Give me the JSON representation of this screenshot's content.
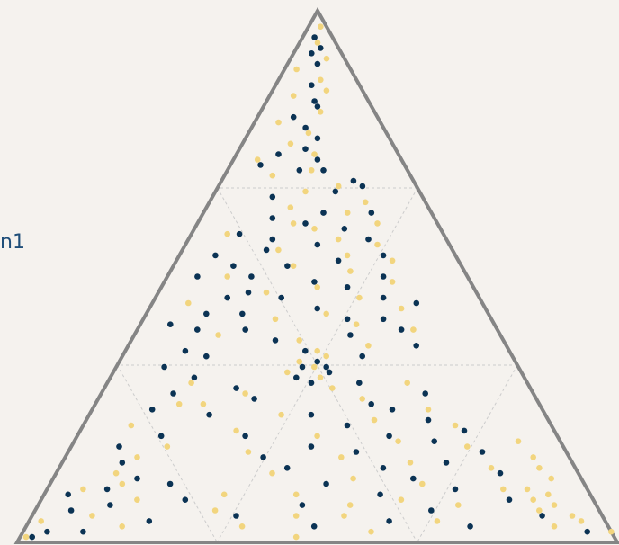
{
  "legend": {
    "partial_label": "n1"
  },
  "chart_data": {
    "type": "scatter",
    "subtype": "ternary",
    "grid": true,
    "colors": {
      "background": "#f5f2ee",
      "frame": "#858585",
      "grid": "#cccccc",
      "series_dark": "#0b3354",
      "series_light": "#f2d57e"
    },
    "series": [
      {
        "color": "#0b3354",
        "points": [
          [
            0.95,
            0.02,
            0.03
          ],
          [
            0.93,
            0.04,
            0.03
          ],
          [
            0.92,
            0.03,
            0.05
          ],
          [
            0.9,
            0.05,
            0.05
          ],
          [
            0.86,
            0.06,
            0.08
          ],
          [
            0.83,
            0.08,
            0.09
          ],
          [
            0.82,
            0.09,
            0.09
          ],
          [
            0.8,
            0.06,
            0.14
          ],
          [
            0.78,
            0.09,
            0.13
          ],
          [
            0.76,
            0.12,
            0.12
          ],
          [
            0.74,
            0.11,
            0.15
          ],
          [
            0.73,
            0.07,
            0.2
          ],
          [
            0.72,
            0.14,
            0.14
          ],
          [
            0.71,
            0.05,
            0.24
          ],
          [
            0.7,
            0.12,
            0.18
          ],
          [
            0.7,
            0.16,
            0.14
          ],
          [
            0.68,
            0.22,
            0.1
          ],
          [
            0.67,
            0.24,
            0.09
          ],
          [
            0.66,
            0.2,
            0.14
          ],
          [
            0.65,
            0.1,
            0.25
          ],
          [
            0.62,
            0.28,
            0.1
          ],
          [
            0.62,
            0.2,
            0.18
          ],
          [
            0.61,
            0.12,
            0.27
          ],
          [
            0.6,
            0.18,
            0.22
          ],
          [
            0.59,
            0.25,
            0.16
          ],
          [
            0.58,
            0.08,
            0.34
          ],
          [
            0.57,
            0.3,
            0.13
          ],
          [
            0.56,
            0.22,
            0.22
          ],
          [
            0.55,
            0.14,
            0.31
          ],
          [
            0.54,
            0.34,
            0.12
          ],
          [
            0.53,
            0.27,
            0.2
          ],
          [
            0.52,
            0.1,
            0.38
          ],
          [
            0.52,
            0.19,
            0.29
          ],
          [
            0.5,
            0.36,
            0.14
          ],
          [
            0.5,
            0.05,
            0.45
          ],
          [
            0.49,
            0.25,
            0.26
          ],
          [
            0.48,
            0.31,
            0.21
          ],
          [
            0.47,
            0.15,
            0.38
          ],
          [
            0.46,
            0.38,
            0.16
          ],
          [
            0.46,
            0.21,
            0.33
          ],
          [
            0.45,
            0.44,
            0.11
          ],
          [
            0.44,
            0.28,
            0.28
          ],
          [
            0.43,
            0.1,
            0.47
          ],
          [
            0.42,
            0.34,
            0.24
          ],
          [
            0.42,
            0.4,
            0.18
          ],
          [
            0.41,
            0.05,
            0.54
          ],
          [
            0.4,
            0.44,
            0.16
          ],
          [
            0.4,
            0.18,
            0.42
          ],
          [
            0.39,
            0.36,
            0.25
          ],
          [
            0.38,
            0.24,
            0.38
          ],
          [
            0.37,
            0.48,
            0.15
          ],
          [
            0.36,
            0.3,
            0.34
          ],
          [
            0.35,
            0.14,
            0.51
          ],
          [
            0.35,
            0.4,
            0.25
          ],
          [
            0.34,
            0.33,
            0.33
          ],
          [
            0.33,
            0.31,
            0.36
          ],
          [
            0.33,
            0.35,
            0.32
          ],
          [
            0.32,
            0.36,
            0.32
          ],
          [
            0.31,
            0.31,
            0.38
          ],
          [
            0.3,
            0.34,
            0.36
          ],
          [
            0.3,
            0.42,
            0.28
          ],
          [
            0.29,
            0.22,
            0.49
          ],
          [
            0.28,
            0.54,
            0.18
          ],
          [
            0.27,
            0.26,
            0.47
          ],
          [
            0.26,
            0.46,
            0.28
          ],
          [
            0.25,
            0.5,
            0.25
          ],
          [
            0.24,
            0.2,
            0.56
          ],
          [
            0.24,
            0.37,
            0.39
          ],
          [
            0.23,
            0.57,
            0.2
          ],
          [
            0.22,
            0.44,
            0.34
          ],
          [
            0.21,
            0.64,
            0.15
          ],
          [
            0.2,
            0.28,
            0.52
          ],
          [
            0.2,
            0.52,
            0.28
          ],
          [
            0.19,
            0.6,
            0.21
          ],
          [
            0.18,
            0.4,
            0.42
          ],
          [
            0.17,
            0.69,
            0.14
          ],
          [
            0.17,
            0.48,
            0.35
          ],
          [
            0.16,
            0.33,
            0.51
          ],
          [
            0.15,
            0.64,
            0.21
          ],
          [
            0.14,
            0.54,
            0.32
          ],
          [
            0.14,
            0.38,
            0.48
          ],
          [
            0.13,
            0.74,
            0.13
          ],
          [
            0.12,
            0.6,
            0.28
          ],
          [
            0.11,
            0.46,
            0.43
          ],
          [
            0.11,
            0.2,
            0.69
          ],
          [
            0.1,
            0.68,
            0.22
          ],
          [
            0.09,
            0.56,
            0.35
          ],
          [
            0.08,
            0.78,
            0.14
          ],
          [
            0.08,
            0.24,
            0.68
          ],
          [
            0.07,
            0.44,
            0.49
          ],
          [
            0.06,
            0.66,
            0.28
          ],
          [
            0.05,
            0.85,
            0.1
          ],
          [
            0.05,
            0.34,
            0.61
          ],
          [
            0.04,
            0.6,
            0.36
          ],
          [
            0.04,
            0.2,
            0.76
          ],
          [
            0.03,
            0.74,
            0.23
          ],
          [
            0.03,
            0.48,
            0.49
          ],
          [
            0.02,
            0.94,
            0.04
          ],
          [
            0.02,
            0.1,
            0.88
          ],
          [
            0.01,
            0.02,
            0.97
          ],
          [
            0.12,
            0.14,
            0.74
          ],
          [
            0.1,
            0.1,
            0.8
          ],
          [
            0.07,
            0.12,
            0.81
          ],
          [
            0.15,
            0.1,
            0.75
          ],
          [
            0.06,
            0.06,
            0.88
          ],
          [
            0.02,
            0.04,
            0.94
          ],
          [
            0.09,
            0.04,
            0.87
          ],
          [
            0.18,
            0.08,
            0.74
          ],
          [
            0.2,
            0.14,
            0.66
          ],
          [
            0.25,
            0.1,
            0.65
          ],
          [
            0.28,
            0.12,
            0.6
          ],
          [
            0.31,
            0.14,
            0.55
          ],
          [
            0.33,
            0.08,
            0.59
          ],
          [
            0.36,
            0.1,
            0.54
          ],
          [
            0.4,
            0.1,
            0.5
          ],
          [
            0.43,
            0.16,
            0.41
          ],
          [
            0.46,
            0.12,
            0.42
          ],
          [
            0.5,
            0.14,
            0.36
          ],
          [
            0.54,
            0.06,
            0.4
          ],
          [
            0.57,
            0.14,
            0.29
          ]
        ]
      },
      {
        "color": "#f2d57e",
        "points": [
          [
            0.94,
            0.03,
            0.03
          ],
          [
            0.91,
            0.06,
            0.03
          ],
          [
            0.89,
            0.02,
            0.09
          ],
          [
            0.87,
            0.07,
            0.06
          ],
          [
            0.85,
            0.09,
            0.06
          ],
          [
            0.84,
            0.04,
            0.12
          ],
          [
            0.81,
            0.1,
            0.09
          ],
          [
            0.79,
            0.04,
            0.17
          ],
          [
            0.77,
            0.1,
            0.13
          ],
          [
            0.75,
            0.08,
            0.17
          ],
          [
            0.73,
            0.13,
            0.14
          ],
          [
            0.72,
            0.04,
            0.24
          ],
          [
            0.7,
            0.14,
            0.16
          ],
          [
            0.69,
            0.08,
            0.23
          ],
          [
            0.67,
            0.2,
            0.13
          ],
          [
            0.66,
            0.15,
            0.19
          ],
          [
            0.64,
            0.26,
            0.1
          ],
          [
            0.63,
            0.14,
            0.23
          ],
          [
            0.62,
            0.24,
            0.14
          ],
          [
            0.6,
            0.16,
            0.24
          ],
          [
            0.6,
            0.3,
            0.1
          ],
          [
            0.59,
            0.2,
            0.21
          ],
          [
            0.58,
            0.06,
            0.36
          ],
          [
            0.57,
            0.25,
            0.18
          ],
          [
            0.56,
            0.32,
            0.12
          ],
          [
            0.55,
            0.16,
            0.29
          ],
          [
            0.54,
            0.28,
            0.18
          ],
          [
            0.53,
            0.36,
            0.11
          ],
          [
            0.52,
            0.2,
            0.28
          ],
          [
            0.51,
            0.3,
            0.19
          ],
          [
            0.5,
            0.1,
            0.4
          ],
          [
            0.49,
            0.38,
            0.13
          ],
          [
            0.48,
            0.26,
            0.26
          ],
          [
            0.47,
            0.18,
            0.35
          ],
          [
            0.46,
            0.34,
            0.2
          ],
          [
            0.45,
            0.06,
            0.49
          ],
          [
            0.44,
            0.42,
            0.14
          ],
          [
            0.43,
            0.3,
            0.27
          ],
          [
            0.42,
            0.22,
            0.36
          ],
          [
            0.41,
            0.36,
            0.23
          ],
          [
            0.4,
            0.46,
            0.14
          ],
          [
            0.39,
            0.14,
            0.47
          ],
          [
            0.38,
            0.28,
            0.34
          ],
          [
            0.37,
            0.4,
            0.23
          ],
          [
            0.36,
            0.32,
            0.32
          ],
          [
            0.35,
            0.34,
            0.31
          ],
          [
            0.34,
            0.3,
            0.36
          ],
          [
            0.33,
            0.33,
            0.34
          ],
          [
            0.32,
            0.29,
            0.39
          ],
          [
            0.31,
            0.35,
            0.34
          ],
          [
            0.3,
            0.5,
            0.2
          ],
          [
            0.29,
            0.38,
            0.33
          ],
          [
            0.28,
            0.24,
            0.48
          ],
          [
            0.27,
            0.44,
            0.29
          ],
          [
            0.26,
            0.18,
            0.56
          ],
          [
            0.25,
            0.56,
            0.19
          ],
          [
            0.24,
            0.32,
            0.44
          ],
          [
            0.23,
            0.48,
            0.29
          ],
          [
            0.22,
            0.62,
            0.16
          ],
          [
            0.21,
            0.26,
            0.53
          ],
          [
            0.2,
            0.4,
            0.4
          ],
          [
            0.19,
            0.54,
            0.27
          ],
          [
            0.18,
            0.66,
            0.16
          ],
          [
            0.17,
            0.3,
            0.53
          ],
          [
            0.16,
            0.46,
            0.38
          ],
          [
            0.15,
            0.58,
            0.27
          ],
          [
            0.14,
            0.72,
            0.14
          ],
          [
            0.13,
            0.36,
            0.51
          ],
          [
            0.12,
            0.5,
            0.38
          ],
          [
            0.11,
            0.62,
            0.27
          ],
          [
            0.1,
            0.76,
            0.14
          ],
          [
            0.09,
            0.42,
            0.49
          ],
          [
            0.08,
            0.6,
            0.32
          ],
          [
            0.07,
            0.7,
            0.23
          ],
          [
            0.06,
            0.84,
            0.1
          ],
          [
            0.06,
            0.3,
            0.64
          ],
          [
            0.05,
            0.52,
            0.43
          ],
          [
            0.04,
            0.68,
            0.28
          ],
          [
            0.03,
            0.88,
            0.09
          ],
          [
            0.02,
            0.58,
            0.4
          ],
          [
            0.12,
            0.83,
            0.05
          ],
          [
            0.09,
            0.84,
            0.07
          ],
          [
            0.07,
            0.86,
            0.07
          ],
          [
            0.05,
            0.9,
            0.05
          ],
          [
            0.04,
            0.92,
            0.04
          ],
          [
            0.16,
            0.78,
            0.06
          ],
          [
            0.14,
            0.8,
            0.06
          ],
          [
            0.1,
            0.8,
            0.1
          ],
          [
            0.08,
            0.82,
            0.1
          ],
          [
            0.19,
            0.74,
            0.07
          ],
          [
            0.11,
            0.12,
            0.77
          ],
          [
            0.13,
            0.1,
            0.77
          ],
          [
            0.08,
            0.16,
            0.76
          ],
          [
            0.05,
            0.1,
            0.85
          ],
          [
            0.03,
            0.16,
            0.81
          ],
          [
            0.1,
            0.06,
            0.84
          ],
          [
            0.16,
            0.12,
            0.72
          ],
          [
            0.18,
            0.16,
            0.66
          ],
          [
            0.22,
            0.08,
            0.7
          ],
          [
            0.26,
            0.14,
            0.6
          ],
          [
            0.01,
            0.46,
            0.53
          ],
          [
            0.03,
            0.36,
            0.61
          ],
          [
            0.05,
            0.44,
            0.51
          ],
          [
            0.07,
            0.52,
            0.41
          ],
          [
            0.09,
            0.3,
            0.61
          ],
          [
            0.02,
            0.98,
            0.0
          ],
          [
            0.01,
            0.01,
            0.98
          ],
          [
            0.04,
            0.02,
            0.94
          ],
          [
            0.97,
            0.02,
            0.01
          ],
          [
            0.3,
            0.14,
            0.56
          ]
        ]
      }
    ]
  }
}
